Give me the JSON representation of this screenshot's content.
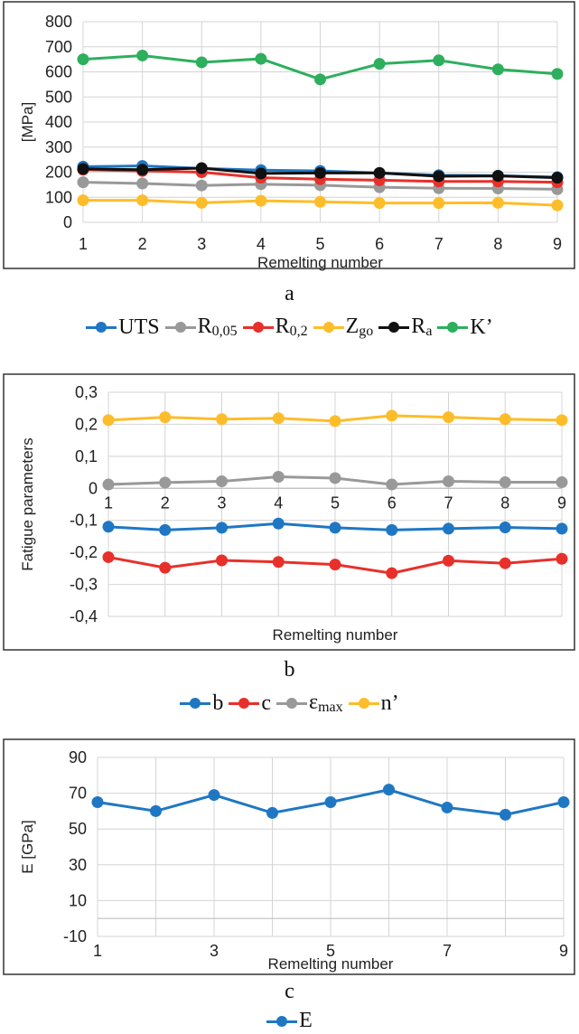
{
  "panels": [
    {
      "caption": "a",
      "chart_data": {
        "type": "line",
        "x": [
          1,
          2,
          3,
          4,
          5,
          6,
          7,
          8,
          9
        ],
        "x_ticks": [
          "1",
          "2",
          "3",
          "4",
          "5",
          "6",
          "7",
          "8",
          "9"
        ],
        "xlabel": "Remelting number",
        "ylabel": "[MPa]",
        "ylim": [
          0,
          800
        ],
        "y_ticks": [
          "0",
          "100",
          "200",
          "300",
          "400",
          "500",
          "600",
          "700",
          "800"
        ],
        "grid": true,
        "legend_position": "bottom",
        "series": [
          {
            "name": "UTS",
            "name_main": "UTS",
            "name_sub": "",
            "color": "#1f77c4",
            "values": [
              222,
              225,
              215,
              208,
              205,
              197,
              188,
              186,
              180
            ]
          },
          {
            "name": "R0,05",
            "name_main": "R",
            "name_sub": "0,05",
            "color": "#999999",
            "values": [
              160,
              155,
              147,
              152,
              148,
              140,
              136,
              135,
              132
            ]
          },
          {
            "name": "R0,2",
            "name_main": "R",
            "name_sub": "0,2",
            "color": "#e8302a",
            "values": [
              210,
              205,
              200,
              178,
              172,
              168,
              163,
              163,
              160
            ]
          },
          {
            "name": "Zgo",
            "name_main": "Z",
            "name_sub": "go",
            "color": "#fdbd2a",
            "values": [
              88,
              88,
              78,
              86,
              82,
              77,
              77,
              78,
              68
            ]
          },
          {
            "name": "Ra",
            "name_main": "R",
            "name_sub": "a",
            "color": "#111111",
            "values": [
              213,
              210,
              216,
              195,
              197,
              197,
              184,
              185,
              178
            ]
          },
          {
            "name": "K'",
            "name_main": "K’",
            "name_sub": "",
            "color": "#2eaf5e",
            "values": [
              650,
              665,
              638,
              652,
              570,
              632,
              646,
              610,
              592
            ]
          }
        ]
      }
    },
    {
      "caption": "b",
      "chart_data": {
        "type": "line",
        "x": [
          1,
          2,
          3,
          4,
          5,
          6,
          7,
          8,
          9
        ],
        "x_ticks": [
          "1",
          "2",
          "3",
          "4",
          "5",
          "6",
          "7",
          "8",
          "9"
        ],
        "xlabel": "Remelting number",
        "ylabel": "Fatigue parameters",
        "ylim": [
          -0.4,
          0.3
        ],
        "y_ticks": [
          "-0,4",
          "-0,3",
          "-0,2",
          "-0,1",
          "0",
          "0,1",
          "0,2",
          "0,3"
        ],
        "grid": true,
        "legend_position": "bottom",
        "series": [
          {
            "name": "b",
            "name_main": "b",
            "name_sub": "",
            "color": "#1f77c4",
            "values": [
              -0.12,
              -0.13,
              -0.123,
              -0.11,
              -0.123,
              -0.13,
              -0.126,
              -0.122,
              -0.126
            ]
          },
          {
            "name": "c",
            "name_main": "c",
            "name_sub": "",
            "color": "#e8302a",
            "values": [
              -0.215,
              -0.248,
              -0.225,
              -0.23,
              -0.238,
              -0.265,
              -0.226,
              -0.234,
              -0.22
            ]
          },
          {
            "name": "εmax",
            "name_main": "ε",
            "name_sub": "max",
            "color": "#999999",
            "values": [
              0.012,
              0.018,
              0.022,
              0.036,
              0.032,
              0.012,
              0.022,
              0.019,
              0.019
            ]
          },
          {
            "name": "n'",
            "name_main": "n’",
            "name_sub": "",
            "color": "#fdbd2a",
            "values": [
              0.213,
              0.222,
              0.216,
              0.219,
              0.21,
              0.227,
              0.222,
              0.216,
              0.213
            ]
          }
        ]
      }
    },
    {
      "caption": "c",
      "chart_data": {
        "type": "line",
        "x": [
          1,
          2,
          3,
          4,
          5,
          6,
          7,
          8,
          9
        ],
        "x_ticks": [
          "1",
          "",
          "3",
          "",
          "5",
          "",
          "7",
          "",
          "9"
        ],
        "xlabel": "Remelting number",
        "ylabel": "E [GPa]",
        "ylim": [
          -10,
          90
        ],
        "y_ticks": [
          "-10",
          "10",
          "30",
          "50",
          "70",
          "90"
        ],
        "grid": true,
        "legend_position": "bottom",
        "series": [
          {
            "name": "E",
            "name_main": "E",
            "name_sub": "",
            "color": "#1f77c4",
            "values": [
              65,
              60,
              69,
              59,
              65,
              72,
              62,
              58,
              65
            ]
          }
        ]
      }
    }
  ]
}
